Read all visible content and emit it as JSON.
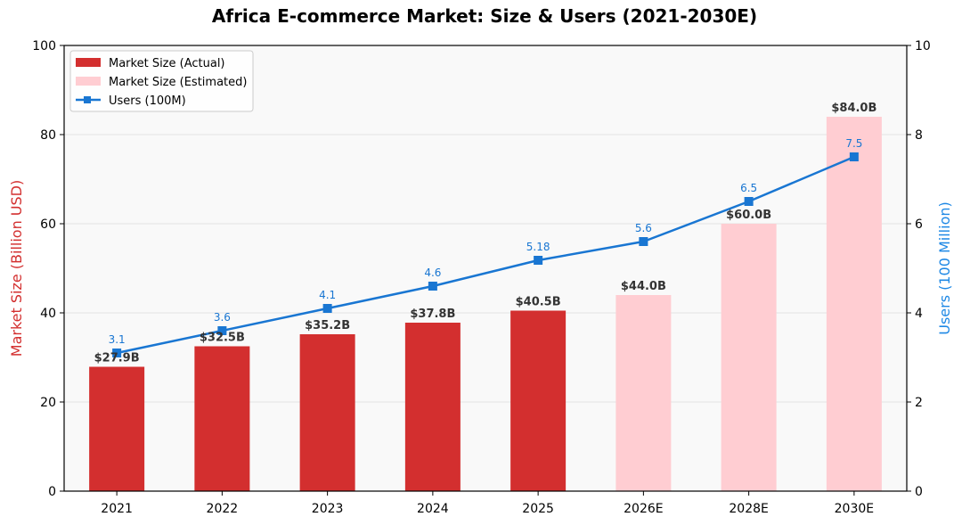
{
  "chart_data": {
    "type": "bar",
    "title": "Africa E-commerce Market: Size & Users (2021-2030E)",
    "categories": [
      "2021",
      "2022",
      "2023",
      "2024",
      "2025",
      "2026E",
      "2028E",
      "2030E"
    ],
    "series": [
      {
        "name": "Market Size (Actual)",
        "kind": "bar",
        "axis": "left",
        "values": [
          27.9,
          32.5,
          35.2,
          37.8,
          40.5,
          null,
          null,
          null
        ],
        "labels": [
          "$27.9B",
          "$32.5B",
          "$35.2B",
          "$37.8B",
          "$40.5B",
          null,
          null,
          null
        ]
      },
      {
        "name": "Market Size (Estimated)",
        "kind": "bar",
        "axis": "left",
        "values": [
          null,
          null,
          null,
          null,
          null,
          44.0,
          60.0,
          84.0
        ],
        "labels": [
          null,
          null,
          null,
          null,
          null,
          "$44.0B",
          "$60.0B",
          "$84.0B"
        ]
      },
      {
        "name": "Users (100M)",
        "kind": "line",
        "axis": "right",
        "marker": "square",
        "values": [
          3.1,
          3.6,
          4.1,
          4.6,
          5.18,
          5.6,
          6.5,
          7.5
        ],
        "labels": [
          "3.1",
          "3.6",
          "4.1",
          "4.6",
          "5.18",
          "5.6",
          "6.5",
          "7.5"
        ]
      }
    ],
    "ylabel": "Market Size (Billion USD)",
    "ylabel_right": "Users (100 Million)",
    "ylim": [
      0,
      100
    ],
    "ylim_right": [
      0,
      10
    ],
    "yticks": [
      "0",
      "20",
      "40",
      "60",
      "80",
      "100"
    ],
    "yticks_right": [
      "0",
      "2",
      "4",
      "6",
      "8",
      "10"
    ],
    "grid": true,
    "legend_position": "top-left",
    "colors": {
      "actual": "#d32f2f",
      "estimated": "#ffcdd2",
      "users": "#1976d2",
      "left_axis_title": "#d32f2f",
      "right_axis_title": "#1e88e5",
      "plot_background": "#f9f9f9",
      "grid": "#e3e3e3"
    }
  }
}
